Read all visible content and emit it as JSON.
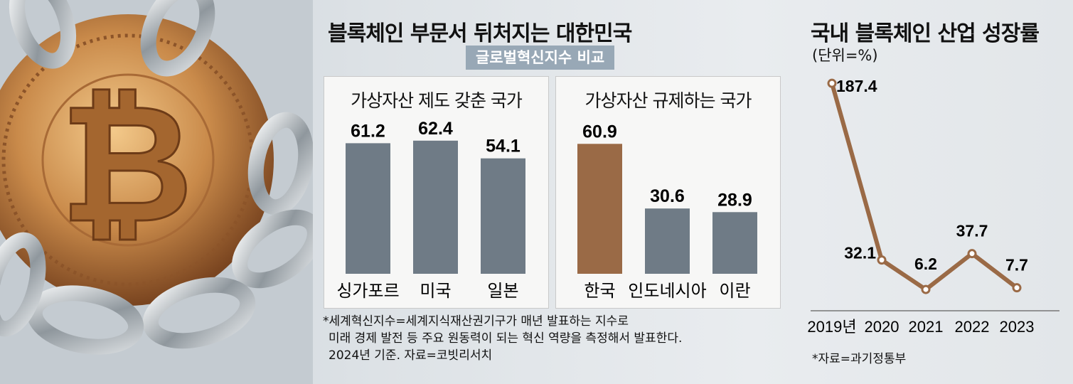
{
  "titles": {
    "left_chart": "블록체인 부문서 뒤처지는 대한민국",
    "left_subtitle": "글로벌혁신지수 비교",
    "right_chart": "국내 블록체인 산업 성장률",
    "right_unit": "(단위=%)"
  },
  "boxes": {
    "regulated_title": "가상자산 제도 갖춘 국가",
    "restricted_title": "가상자산 규제하는 국가"
  },
  "footnote": {
    "line1": "*세계혁신지수=세계지식재산권기구가 매년 발표하는 지수로",
    "line2": "미래 경제 발전 등 주요 원동력이 되는 혁신 역량을 측정해서 발표한다.",
    "line3": "2024년 기준. 자료=코빗리서치"
  },
  "source": "*자료=과기정통부",
  "colors": {
    "bar_gray": "#6f7b86",
    "bar_highlight": "#9a6a46",
    "line": "#9a6a46",
    "badge": "#98a8b6"
  },
  "chart_data": [
    {
      "type": "bar",
      "title": "가상자산 제도 갖춘 국가",
      "categories": [
        "싱가포르",
        "미국",
        "일본"
      ],
      "values": [
        61.2,
        62.4,
        54.1
      ],
      "value_labels": [
        "61.2",
        "62.4",
        "54.1"
      ],
      "ylim": [
        0,
        70
      ]
    },
    {
      "type": "bar",
      "title": "가상자산 규제하는 국가",
      "categories": [
        "한국",
        "인도네시아",
        "이란"
      ],
      "values": [
        60.9,
        30.6,
        28.9
      ],
      "value_labels": [
        "60.9",
        "30.6",
        "28.9"
      ],
      "highlight": "한국",
      "ylim": [
        0,
        70
      ]
    },
    {
      "type": "line",
      "title": "국내 블록체인 산업 성장률",
      "x": [
        "2019년",
        "2020",
        "2021",
        "2022",
        "2023"
      ],
      "values": [
        187.4,
        32.1,
        6.2,
        37.7,
        7.7
      ],
      "value_labels": [
        "187.4",
        "32.1",
        "6.2",
        "37.7",
        "7.7"
      ],
      "ylim": [
        0,
        190
      ]
    }
  ]
}
